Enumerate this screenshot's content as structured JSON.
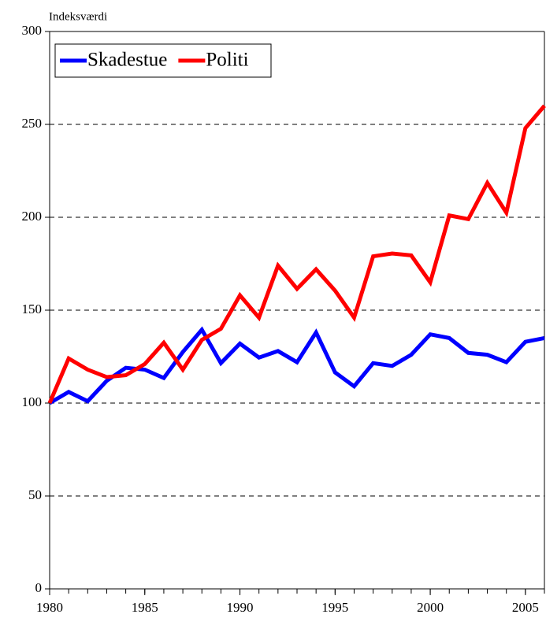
{
  "chart_data": {
    "type": "line",
    "y_label": "Indeksværdi",
    "x": [
      1980,
      1981,
      1982,
      1983,
      1984,
      1985,
      1986,
      1987,
      1988,
      1989,
      1990,
      1991,
      1992,
      1993,
      1994,
      1995,
      1996,
      1997,
      1998,
      1999,
      2000,
      2001,
      2002,
      2003,
      2004,
      2005,
      2006
    ],
    "series": [
      {
        "name": "Skadestue",
        "color": "#0000ff",
        "values": [
          100,
          106,
          101,
          112,
          119,
          118,
          113.5,
          127.5,
          139.5,
          121.5,
          132,
          124.5,
          128,
          122,
          138,
          116.5,
          109,
          121.5,
          120,
          126,
          137,
          135,
          127,
          126,
          122,
          133,
          135
        ]
      },
      {
        "name": "Politi",
        "color": "#ff0000",
        "values": [
          100,
          124,
          118,
          114,
          115,
          121,
          132.5,
          118,
          134,
          140,
          158,
          146,
          174,
          161.5,
          172,
          160.5,
          146,
          179,
          180.5,
          179.5,
          165,
          201,
          199,
          218.5,
          202.5,
          248,
          260
        ]
      }
    ],
    "xlim": [
      1980,
      2006
    ],
    "xticks": [
      1980,
      1985,
      1990,
      1995,
      2000,
      2005
    ],
    "ylim": [
      0,
      300
    ],
    "yticks": [
      0,
      50,
      100,
      150,
      200,
      250,
      300
    ],
    "grid": true,
    "legend": "top-left"
  }
}
